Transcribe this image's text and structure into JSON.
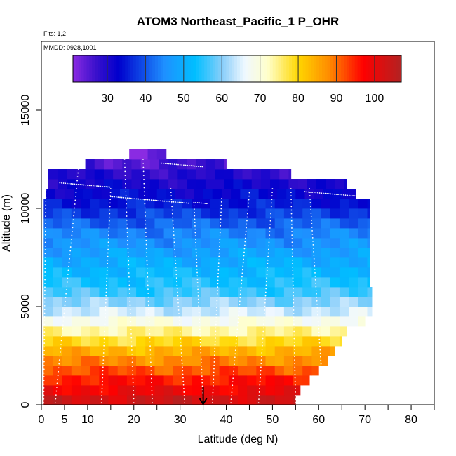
{
  "chart_data": {
    "type": "heatmap",
    "title": "ATOM3 Northeast_Pacific_1 P_OHR",
    "flights_label": "Flts: 1,2",
    "dates_label": "MMDD: 0928,1001",
    "xlabel": "Latitude (deg N)",
    "ylabel": "Altitude (m)",
    "xlim": [
      0,
      85
    ],
    "ylim": [
      0,
      18500
    ],
    "x_ticks": [
      0,
      5,
      10,
      20,
      30,
      40,
      50,
      60,
      70,
      80
    ],
    "x_tick_labels": [
      "0",
      "5",
      "10",
      "20",
      "30",
      "40",
      "50",
      "60",
      "70",
      "80"
    ],
    "x_minor_ticks": [
      15,
      25,
      35,
      45,
      55,
      65,
      75,
      85
    ],
    "y_ticks": [
      0,
      5000,
      10000,
      15000
    ],
    "y_tick_labels": [
      "0",
      "5000",
      "10000",
      "15000"
    ],
    "colorbar": {
      "range": [
        21,
        107
      ],
      "tick_values": [
        30,
        40,
        50,
        60,
        70,
        80,
        90,
        100
      ],
      "tick_labels": [
        "30",
        "40",
        "50",
        "60",
        "70",
        "80",
        "90",
        "100"
      ],
      "colors": [
        "#8a2be2",
        "#3a10cc",
        "#0000cd",
        "#1e90ff",
        "#00bfff",
        "#87cefa",
        "#f0f8ff",
        "#ffffcc",
        "#ffd700",
        "#ff8c00",
        "#ff0000",
        "#b22222"
      ],
      "color_stops": [
        21,
        27,
        33,
        45,
        53,
        60,
        66,
        72,
        80,
        88,
        97,
        107
      ]
    },
    "altitude_layers": [
      {
        "alt": 250,
        "xmin": 0.5,
        "xmax": 55,
        "value": 103
      },
      {
        "alt": 750,
        "xmin": 0.5,
        "xmax": 56,
        "value": 99
      },
      {
        "alt": 1250,
        "xmin": 0.5,
        "xmax": 58,
        "value": 96
      },
      {
        "alt": 1750,
        "xmin": 0.5,
        "xmax": 60,
        "value": 92
      },
      {
        "alt": 2250,
        "xmin": 0.5,
        "xmax": 62,
        "value": 88
      },
      {
        "alt": 2750,
        "xmin": 0.5,
        "xmax": 63.5,
        "value": 84
      },
      {
        "alt": 3250,
        "xmin": 0.5,
        "xmax": 65,
        "value": 79
      },
      {
        "alt": 3750,
        "xmin": 0.5,
        "xmax": 66,
        "value": 74
      },
      {
        "alt": 4250,
        "xmin": 0.5,
        "xmax": 70,
        "value": 69
      },
      {
        "alt": 4750,
        "xmin": 0.5,
        "xmax": 71.5,
        "value": 64
      },
      {
        "alt": 5250,
        "xmin": 0.5,
        "xmax": 71.5,
        "value": 60
      },
      {
        "alt": 5750,
        "xmin": 0.5,
        "xmax": 71.5,
        "value": 56
      },
      {
        "alt": 6250,
        "xmin": 0.5,
        "xmax": 71,
        "value": 54
      },
      {
        "alt": 6750,
        "xmin": 0.5,
        "xmax": 71,
        "value": 52
      },
      {
        "alt": 7250,
        "xmin": 0.5,
        "xmax": 71,
        "value": 50
      },
      {
        "alt": 7750,
        "xmin": 0.5,
        "xmax": 71,
        "value": 48
      },
      {
        "alt": 8250,
        "xmin": 0.5,
        "xmax": 71,
        "value": 46
      },
      {
        "alt": 8750,
        "xmin": 0.5,
        "xmax": 71,
        "value": 44
      },
      {
        "alt": 9250,
        "xmin": 0.5,
        "xmax": 71,
        "value": 41
      },
      {
        "alt": 9750,
        "xmin": 0.5,
        "xmax": 71,
        "value": 38
      },
      {
        "alt": 10250,
        "xmin": 0.5,
        "xmax": 71,
        "value": 35
      },
      {
        "alt": 10750,
        "xmin": 1,
        "xmax": 68,
        "value": 33
      },
      {
        "alt": 11250,
        "xmin": 1.5,
        "xmax": 66,
        "value": 31
      },
      {
        "alt": 11750,
        "xmin": 1.5,
        "xmax": 54,
        "value": 29
      },
      {
        "alt": 12250,
        "xmin": 9.5,
        "xmax": 40,
        "value": 26
      },
      {
        "alt": 12750,
        "xmin": 19,
        "xmax": 27,
        "value": 22
      }
    ],
    "annotation": {
      "type": "arrow",
      "x": 35,
      "y_from": 900,
      "y_to": 0
    }
  }
}
